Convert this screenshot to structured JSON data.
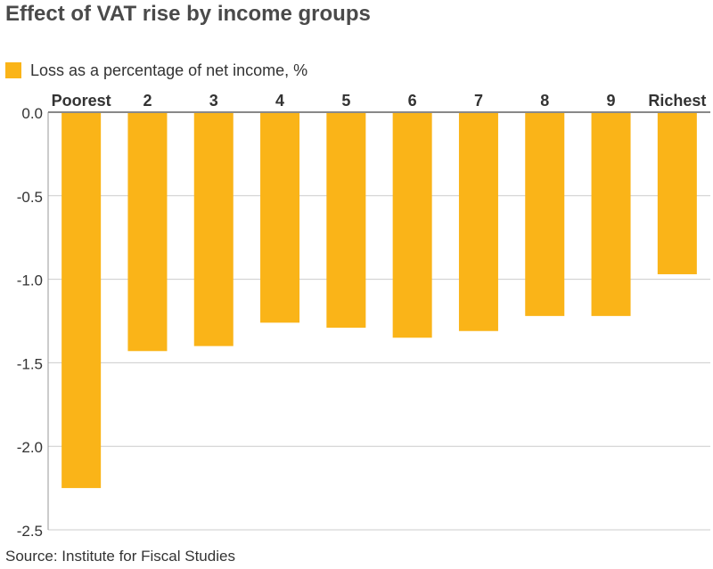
{
  "chart_data": {
    "type": "bar",
    "title": "Effect of VAT rise by income groups",
    "categories": [
      "Poorest",
      "2",
      "3",
      "4",
      "5",
      "6",
      "7",
      "8",
      "9",
      "Richest"
    ],
    "series": [
      {
        "name": "Loss as a percentage of net income, %",
        "values": [
          -2.25,
          -1.43,
          -1.4,
          -1.26,
          -1.29,
          -1.35,
          -1.31,
          -1.22,
          -1.22,
          -0.97
        ]
      }
    ],
    "ylim": [
      -2.5,
      0
    ],
    "yticks": [
      "0.0",
      "-0.5",
      "-1.0",
      "-1.5",
      "-2.0",
      "-2.5"
    ],
    "category_axis_position": "top",
    "grid": true,
    "legend_position": "top-left",
    "bar_color": "#fab418",
    "source": "Source: Institute for Fiscal Studies"
  }
}
